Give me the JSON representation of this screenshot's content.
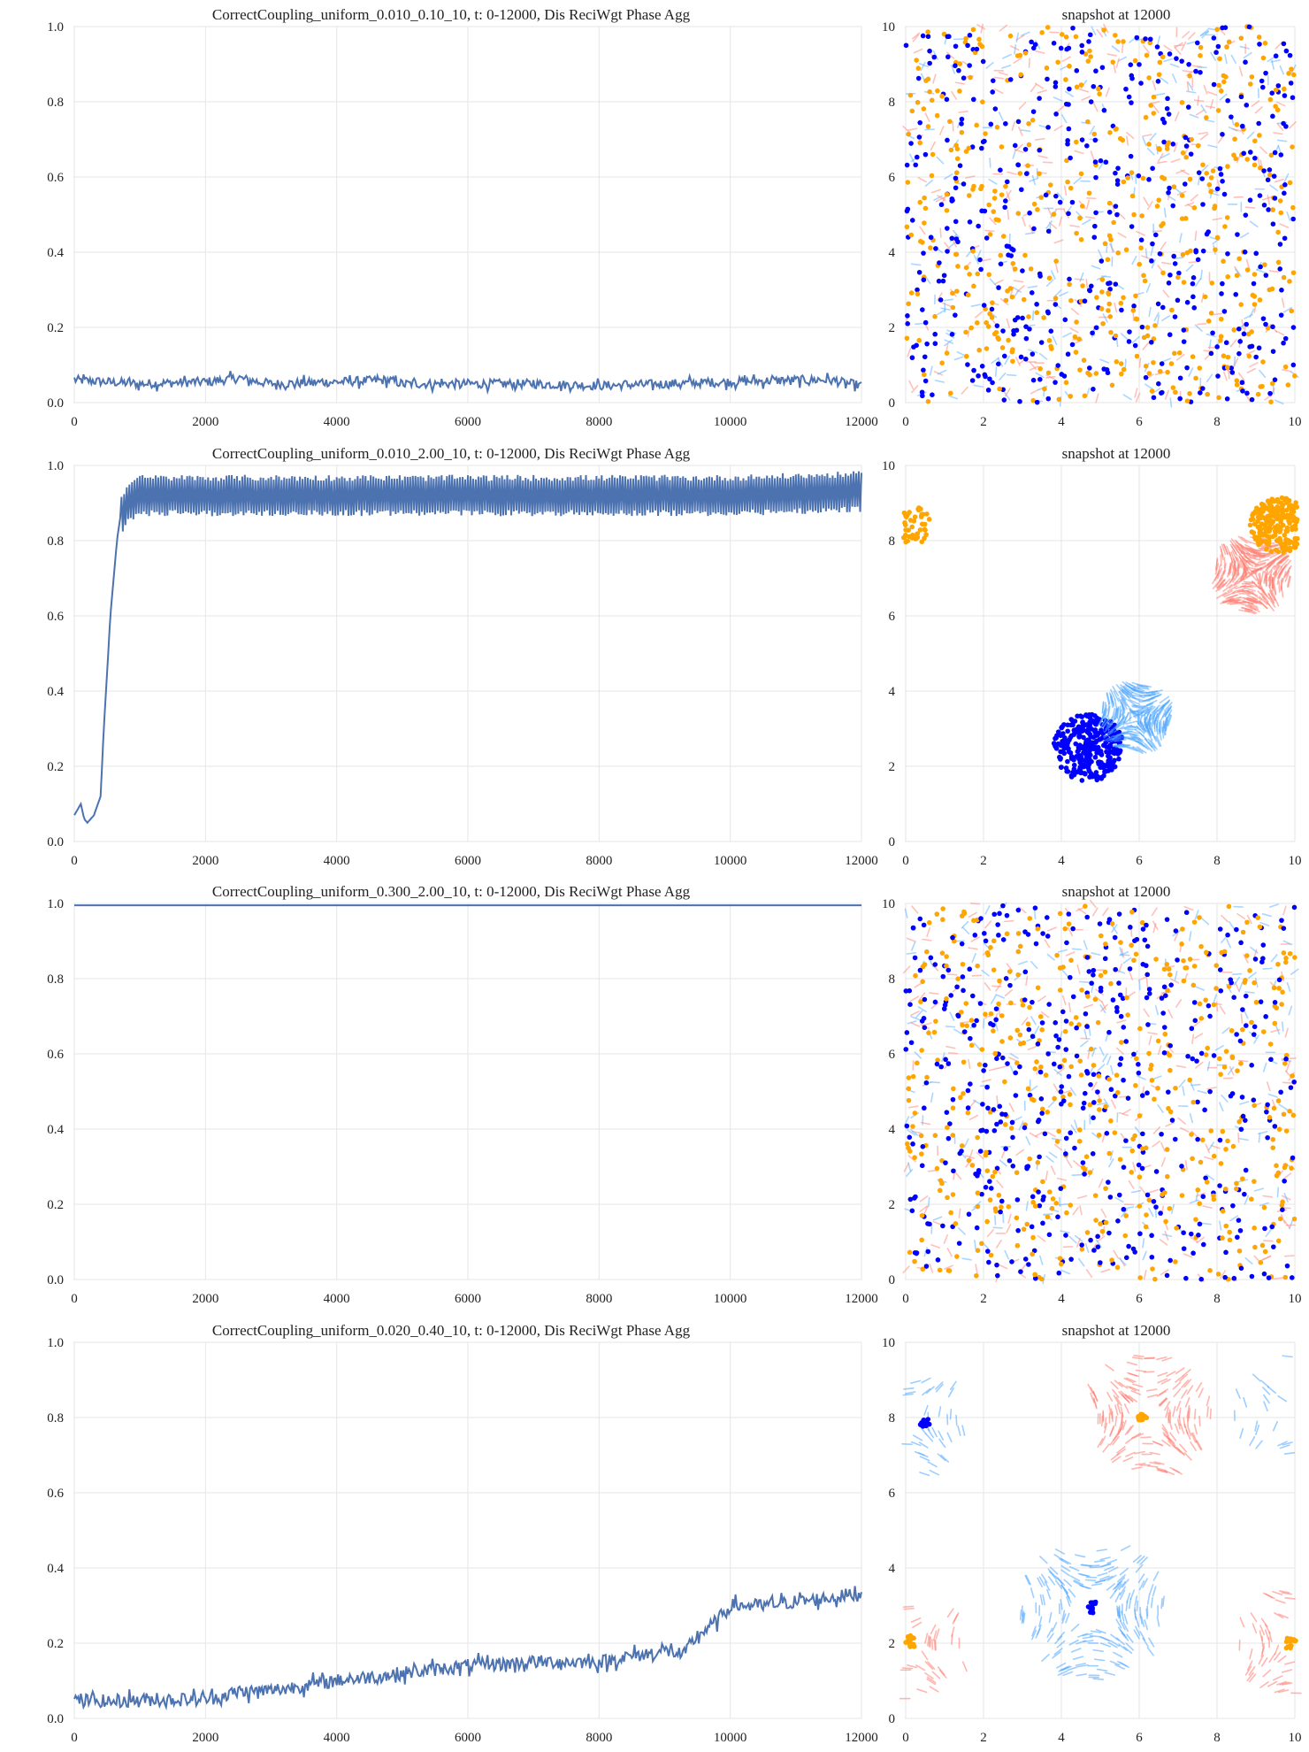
{
  "chart_data": [
    {
      "type": "line",
      "title": "CorrectCoupling_uniform_0.010_0.10_10,     t: 0-12000, Dis ReciWgt Phase Agg",
      "xlim": [
        0,
        12000
      ],
      "ylim": [
        0,
        1
      ],
      "x_ticks": [
        "0",
        "2000",
        "4000",
        "6000",
        "8000",
        "10000",
        "12000"
      ],
      "y_ticks": [
        "0.0",
        "0.2",
        "0.4",
        "0.6",
        "0.8",
        "1.0"
      ],
      "line_color": "#4c72b0",
      "grid": true,
      "series": [
        {
          "x": [
            0,
            1000,
            2000,
            2500,
            3000,
            4000,
            4800,
            5000,
            6000,
            7000,
            8000,
            9000,
            10000,
            11000,
            11500,
            12000
          ],
          "values": [
            0.06,
            0.05,
            0.055,
            0.065,
            0.05,
            0.055,
            0.06,
            0.05,
            0.05,
            0.05,
            0.045,
            0.05,
            0.055,
            0.06,
            0.06,
            0.045
          ],
          "noise": 0.012
        }
      ]
    },
    {
      "type": "scatter",
      "title": "snapshot at 12000",
      "xlim": [
        0,
        10
      ],
      "ylim": [
        0,
        10
      ],
      "x_ticks": [
        "0",
        "2",
        "4",
        "6",
        "8",
        "10"
      ],
      "y_ticks": [
        "0",
        "2",
        "4",
        "6",
        "8",
        "10"
      ],
      "pattern": "uniform",
      "grid": true,
      "colors": {
        "blue_dot": "#0000ff",
        "orange_dot": "#ffa500",
        "blue_trail": "#64b4ff",
        "red_trail": "#ff8c82"
      }
    },
    {
      "type": "line",
      "title": "CorrectCoupling_uniform_0.010_2.00_10,     t: 0-12000, Dis ReciWgt Phase Agg",
      "xlim": [
        0,
        12000
      ],
      "ylim": [
        0,
        1
      ],
      "x_ticks": [
        "0",
        "2000",
        "4000",
        "6000",
        "8000",
        "10000",
        "12000"
      ],
      "y_ticks": [
        "0.0",
        "0.2",
        "0.4",
        "0.6",
        "0.8",
        "1.0"
      ],
      "line_color": "#4c72b0",
      "grid": true,
      "series": [
        {
          "x": [
            0,
            100,
            150,
            200,
            300,
            400,
            450,
            500,
            550,
            600,
            650,
            700,
            800,
            1000,
            2000,
            4000,
            6000,
            8000,
            10000,
            12000
          ],
          "values": [
            0.07,
            0.1,
            0.06,
            0.05,
            0.07,
            0.12,
            0.3,
            0.45,
            0.6,
            0.7,
            0.8,
            0.86,
            0.9,
            0.92,
            0.92,
            0.92,
            0.92,
            0.92,
            0.92,
            0.93
          ],
          "noise": 0.0,
          "oscillation": 0.055
        }
      ]
    },
    {
      "type": "scatter",
      "title": "snapshot at 12000",
      "xlim": [
        0,
        10
      ],
      "ylim": [
        0,
        10
      ],
      "x_ticks": [
        "0",
        "2",
        "4",
        "6",
        "8",
        "10"
      ],
      "y_ticks": [
        "0",
        "2",
        "4",
        "6",
        "8",
        "10"
      ],
      "pattern": "clusters",
      "grid": true,
      "clusters": [
        {
          "kind": "dot",
          "color": "#0000ff",
          "cx": 4.7,
          "cy": 2.5,
          "r": 0.9,
          "n": 320
        },
        {
          "kind": "trail",
          "color": "#4da6ff",
          "cx": 5.9,
          "cy": 3.3,
          "r": 0.9,
          "n": 260
        },
        {
          "kind": "trail",
          "color": "#ff7a6e",
          "cx": 8.9,
          "cy": 7.1,
          "r": 1.0,
          "n": 280
        },
        {
          "kind": "dot",
          "color": "#ffa500",
          "cx": 9.6,
          "cy": 8.4,
          "r": 0.75,
          "n": 260
        },
        {
          "kind": "dot",
          "color": "#ffa500",
          "cx": 0.2,
          "cy": 8.4,
          "r": 0.5,
          "n": 60
        }
      ]
    },
    {
      "type": "line",
      "title": "CorrectCoupling_uniform_0.300_2.00_10,     t: 0-12000, Dis ReciWgt Phase Agg",
      "xlim": [
        0,
        12000
      ],
      "ylim": [
        0,
        1
      ],
      "x_ticks": [
        "0",
        "2000",
        "4000",
        "6000",
        "8000",
        "10000",
        "12000"
      ],
      "y_ticks": [
        "0.0",
        "0.2",
        "0.4",
        "0.6",
        "0.8",
        "1.0"
      ],
      "line_color": "#4c72b0",
      "grid": true,
      "series": [
        {
          "x": [
            0,
            12000
          ],
          "values": [
            1.0,
            1.0
          ],
          "noise": 0.0
        }
      ]
    },
    {
      "type": "scatter",
      "title": "snapshot at 12000",
      "xlim": [
        0,
        10
      ],
      "ylim": [
        0,
        10
      ],
      "x_ticks": [
        "0",
        "2",
        "4",
        "6",
        "8",
        "10"
      ],
      "y_ticks": [
        "0",
        "2",
        "4",
        "6",
        "8",
        "10"
      ],
      "pattern": "uniform",
      "grid": true,
      "colors": {
        "blue_dot": "#0000ff",
        "orange_dot": "#ffa500",
        "blue_trail": "#64b4ff",
        "red_trail": "#ff8c82"
      }
    },
    {
      "type": "line",
      "title": "CorrectCoupling_uniform_0.020_0.40_10,     t: 0-12000, Dis ReciWgt Phase Agg",
      "xlim": [
        0,
        12000
      ],
      "ylim": [
        0,
        1
      ],
      "x_ticks": [
        "0",
        "2000",
        "4000",
        "6000",
        "8000",
        "10000",
        "12000"
      ],
      "y_ticks": [
        "0.0",
        "0.2",
        "0.4",
        "0.6",
        "0.8",
        "1.0"
      ],
      "line_color": "#4c72b0",
      "grid": true,
      "series": [
        {
          "x": [
            0,
            500,
            1000,
            2000,
            2500,
            3000,
            4000,
            5000,
            6000,
            7000,
            8000,
            9000,
            9300,
            9500,
            9800,
            10000,
            10500,
            11000,
            11500,
            12000
          ],
          "values": [
            0.05,
            0.045,
            0.05,
            0.05,
            0.07,
            0.075,
            0.1,
            0.12,
            0.14,
            0.15,
            0.15,
            0.18,
            0.17,
            0.22,
            0.26,
            0.3,
            0.3,
            0.31,
            0.32,
            0.33
          ],
          "noise": 0.018
        }
      ]
    },
    {
      "type": "scatter",
      "title": "snapshot at 12000",
      "xlim": [
        0,
        10
      ],
      "ylim": [
        0,
        10
      ],
      "x_ticks": [
        "0",
        "2",
        "4",
        "6",
        "8",
        "10"
      ],
      "y_ticks": [
        "0",
        "2",
        "4",
        "6",
        "8",
        "10"
      ],
      "pattern": "rings",
      "grid": true,
      "rings": [
        {
          "color": "#ff7a6e",
          "cx": 6.2,
          "cy": 8.0,
          "r": 1.5,
          "n": 170
        },
        {
          "color": "#4da6ff",
          "cx": 4.8,
          "cy": 2.9,
          "r": 1.7,
          "n": 200
        },
        {
          "color": "#ff7a6e",
          "cx": 10.0,
          "cy": 2.0,
          "r": 1.4,
          "n": 80
        },
        {
          "color": "#ff7a6e",
          "cx": 0.0,
          "cy": 2.0,
          "r": 1.5,
          "n": 80
        },
        {
          "color": "#4da6ff",
          "cx": 0.0,
          "cy": 8.0,
          "r": 1.5,
          "n": 60
        },
        {
          "color": "#4da6ff",
          "cx": 10.0,
          "cy": 8.0,
          "r": 1.5,
          "n": 60
        }
      ],
      "dots": [
        {
          "color": "#ffa500",
          "x": 6.1,
          "y": 7.95
        },
        {
          "color": "#0000ff",
          "x": 4.8,
          "y": 2.95
        },
        {
          "color": "#0000ff",
          "x": 0.5,
          "y": 7.9
        },
        {
          "color": "#ffa500",
          "x": 0.1,
          "y": 2.05
        },
        {
          "color": "#ffa500",
          "x": 9.9,
          "y": 2.0
        }
      ]
    }
  ]
}
